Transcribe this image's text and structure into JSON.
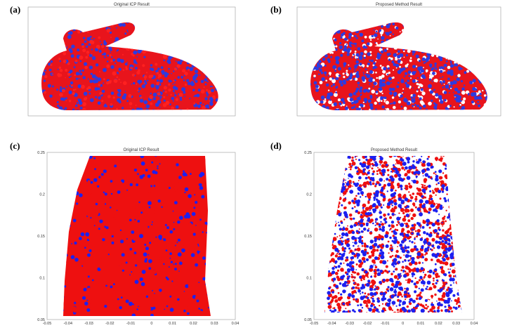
{
  "panels": [
    {
      "label": "(a)",
      "title": "Original ICP Result"
    },
    {
      "label": "(b)",
      "title": "Proposed Method Result"
    },
    {
      "label": "(c)",
      "title": "Original ICP Result",
      "xticks": [
        "-0.05",
        "-0.04",
        "-0.03",
        "-0.02",
        "-0.01",
        "0",
        "0.01",
        "0.02",
        "0.03",
        "0.04"
      ],
      "yticks": [
        "0.25",
        "0.2",
        "0.15",
        "0.1",
        "0.05"
      ]
    },
    {
      "label": "(d)",
      "title": "Proposed Method Result",
      "xticks": [
        "-0.05",
        "-0.04",
        "-0.03",
        "-0.02",
        "-0.01",
        "0",
        "0.01",
        "0.02",
        "0.03",
        "0.04"
      ],
      "yticks": [
        "0.25",
        "0.2",
        "0.15",
        "0.1",
        "0.05"
      ]
    }
  ]
}
